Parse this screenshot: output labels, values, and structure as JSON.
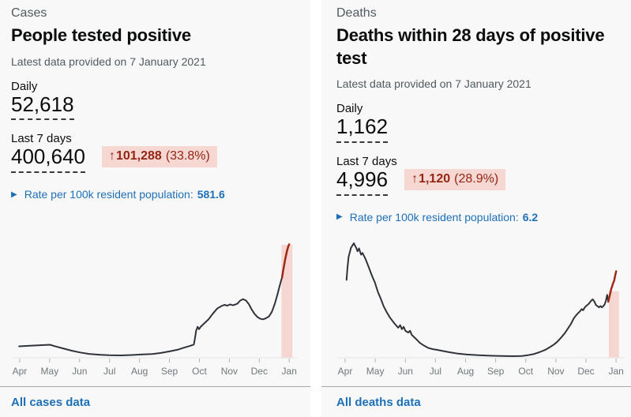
{
  "panels": [
    {
      "id": "cases",
      "section_label": "Cases",
      "title": "People tested positive",
      "date_caption": "Latest data provided on 7 January 2021",
      "daily_label": "Daily",
      "daily_value": "52,618",
      "week_label": "Last 7 days",
      "week_value": "400,640",
      "change_arrow": "↑",
      "change_value": "101,288",
      "change_percent": "(33.8%)",
      "rate_label": "Rate per 100k resident population:",
      "rate_value": "581.6",
      "footer_link": "All cases data"
    },
    {
      "id": "deaths",
      "section_label": "Deaths",
      "title": "Deaths within 28 days of positive test",
      "date_caption": "Latest data provided on 7 January 2021",
      "daily_label": "Daily",
      "daily_value": "1,162",
      "week_label": "Last 7 days",
      "week_value": "4,996",
      "change_arrow": "↑",
      "change_value": "1,120",
      "change_percent": "(28.9%)",
      "rate_label": "Rate per 100k resident population:",
      "rate_value": "6.2",
      "footer_link": "All deaths data"
    }
  ],
  "colors": {
    "page_bg": "#ffffff",
    "panel_bg": "#f8f8f8",
    "text": "#0b0c0c",
    "secondary_text": "#505a5f",
    "link_blue": "#1d70b8",
    "badge_bg": "#f6d7d2",
    "badge_text": "#942514",
    "chart_line": "#30343a",
    "chart_line_red": "#9e2a18",
    "highlight_band": "#f5d6d0",
    "axis_line": "#e4e5e6",
    "tick": "#b1b4b6",
    "axis_label": "#6f777b",
    "divider": "#a6a9ab"
  },
  "chart_data": [
    {
      "type": "line",
      "name": "cases-by-day",
      "title": "People tested positive by day, Apr 2020 - Jan 2021",
      "x_labels": [
        "Apr",
        "May",
        "Jun",
        "Jul",
        "Aug",
        "Sep",
        "Oct",
        "Nov",
        "Dec",
        "Jan"
      ],
      "y_axis": "hidden",
      "grid": false,
      "legend": "none",
      "peak_value_estimate": 62000,
      "latest_daily_value": 52618,
      "highlight_band": {
        "x0": 0.938,
        "x1": 0.976,
        "top": 0.985,
        "color": "#f5d6d0",
        "meaning": "last 7 days"
      },
      "series": [
        {
          "name": "daily-cases",
          "color": "#30343a",
          "width": 2,
          "points": [
            [
              0.028,
              0.1
            ],
            [
              0.06,
              0.104
            ],
            [
              0.1,
              0.11
            ],
            [
              0.135,
              0.114
            ],
            [
              0.15,
              0.102
            ],
            [
              0.18,
              0.082
            ],
            [
              0.21,
              0.062
            ],
            [
              0.24,
              0.046
            ],
            [
              0.27,
              0.034
            ],
            [
              0.31,
              0.026
            ],
            [
              0.34,
              0.022
            ],
            [
              0.38,
              0.021
            ],
            [
              0.42,
              0.024
            ],
            [
              0.45,
              0.028
            ],
            [
              0.49,
              0.033
            ],
            [
              0.52,
              0.042
            ],
            [
              0.55,
              0.056
            ],
            [
              0.58,
              0.072
            ],
            [
              0.6,
              0.088
            ],
            [
              0.62,
              0.103
            ],
            [
              0.634,
              0.115
            ],
            [
              0.638,
              0.17
            ],
            [
              0.642,
              0.235
            ],
            [
              0.647,
              0.27
            ],
            [
              0.652,
              0.25
            ],
            [
              0.658,
              0.272
            ],
            [
              0.67,
              0.3
            ],
            [
              0.685,
              0.335
            ],
            [
              0.7,
              0.385
            ],
            [
              0.715,
              0.43
            ],
            [
              0.73,
              0.452
            ],
            [
              0.74,
              0.462
            ],
            [
              0.75,
              0.455
            ],
            [
              0.76,
              0.466
            ],
            [
              0.77,
              0.458
            ],
            [
              0.785,
              0.472
            ],
            [
              0.795,
              0.5
            ],
            [
              0.805,
              0.512
            ],
            [
              0.815,
              0.5
            ],
            [
              0.825,
              0.468
            ],
            [
              0.835,
              0.42
            ],
            [
              0.845,
              0.382
            ],
            [
              0.855,
              0.355
            ],
            [
              0.865,
              0.34
            ],
            [
              0.875,
              0.336
            ],
            [
              0.885,
              0.346
            ],
            [
              0.895,
              0.362
            ],
            [
              0.905,
              0.402
            ],
            [
              0.915,
              0.472
            ],
            [
              0.925,
              0.56
            ],
            [
              0.932,
              0.63
            ],
            [
              0.937,
              0.675
            ],
            [
              0.94,
              0.7
            ]
          ]
        },
        {
          "name": "daily-cases-last-7-days",
          "color": "#9e2a18",
          "width": 2.5,
          "points": [
            [
              0.94,
              0.7
            ],
            [
              0.945,
              0.775
            ],
            [
              0.951,
              0.86
            ],
            [
              0.957,
              0.93
            ],
            [
              0.962,
              0.975
            ],
            [
              0.965,
              0.99
            ]
          ]
        }
      ]
    },
    {
      "type": "line",
      "name": "deaths-by-day",
      "title": "Deaths within 28 days of positive test by day, Apr 2020 - Jan 2021",
      "x_labels": [
        "Apr",
        "May",
        "Jun",
        "Jul",
        "Aug",
        "Sep",
        "Oct",
        "Nov",
        "Dec",
        "Jan"
      ],
      "y_axis": "hidden",
      "grid": false,
      "legend": "none",
      "peak_value_estimate": 1100,
      "latest_daily_value": 1162,
      "highlight_band": {
        "x0": 0.94,
        "x1": 0.975,
        "top": 0.58,
        "color": "#f5d6d0",
        "meaning": "last 7 days"
      },
      "series": [
        {
          "name": "daily-deaths",
          "color": "#30343a",
          "width": 2,
          "points": [
            [
              0.035,
              0.68
            ],
            [
              0.038,
              0.78
            ],
            [
              0.042,
              0.88
            ],
            [
              0.05,
              0.96
            ],
            [
              0.06,
              1.0
            ],
            [
              0.068,
              0.96
            ],
            [
              0.073,
              0.93
            ],
            [
              0.078,
              0.955
            ],
            [
              0.085,
              0.9
            ],
            [
              0.09,
              0.915
            ],
            [
              0.1,
              0.865
            ],
            [
              0.11,
              0.8
            ],
            [
              0.122,
              0.72
            ],
            [
              0.133,
              0.655
            ],
            [
              0.143,
              0.575
            ],
            [
              0.153,
              0.515
            ],
            [
              0.163,
              0.45
            ],
            [
              0.173,
              0.4
            ],
            [
              0.185,
              0.35
            ],
            [
              0.2,
              0.3
            ],
            [
              0.213,
              0.262
            ],
            [
              0.22,
              0.285
            ],
            [
              0.226,
              0.25
            ],
            [
              0.232,
              0.27
            ],
            [
              0.238,
              0.235
            ],
            [
              0.248,
              0.22
            ],
            [
              0.254,
              0.236
            ],
            [
              0.26,
              0.2
            ],
            [
              0.273,
              0.168
            ],
            [
              0.288,
              0.13
            ],
            [
              0.303,
              0.105
            ],
            [
              0.318,
              0.085
            ],
            [
              0.333,
              0.075
            ],
            [
              0.35,
              0.068
            ],
            [
              0.37,
              0.058
            ],
            [
              0.39,
              0.048
            ],
            [
              0.42,
              0.036
            ],
            [
              0.45,
              0.028
            ],
            [
              0.49,
              0.022
            ],
            [
              0.53,
              0.018
            ],
            [
              0.57,
              0.015
            ],
            [
              0.61,
              0.014
            ],
            [
              0.64,
              0.016
            ],
            [
              0.66,
              0.022
            ],
            [
              0.68,
              0.032
            ],
            [
              0.7,
              0.048
            ],
            [
              0.72,
              0.068
            ],
            [
              0.735,
              0.09
            ],
            [
              0.75,
              0.115
            ],
            [
              0.762,
              0.14
            ],
            [
              0.775,
              0.175
            ],
            [
              0.788,
              0.215
            ],
            [
              0.8,
              0.26
            ],
            [
              0.81,
              0.3
            ],
            [
              0.818,
              0.34
            ],
            [
              0.825,
              0.365
            ],
            [
              0.832,
              0.385
            ],
            [
              0.84,
              0.405
            ],
            [
              0.846,
              0.425
            ],
            [
              0.851,
              0.415
            ],
            [
              0.857,
              0.44
            ],
            [
              0.863,
              0.455
            ],
            [
              0.87,
              0.47
            ],
            [
              0.878,
              0.495
            ],
            [
              0.884,
              0.51
            ],
            [
              0.89,
              0.492
            ],
            [
              0.895,
              0.462
            ],
            [
              0.9,
              0.452
            ],
            [
              0.906,
              0.44
            ],
            [
              0.911,
              0.452
            ],
            [
              0.916,
              0.44
            ],
            [
              0.921,
              0.452
            ],
            [
              0.926,
              0.468
            ],
            [
              0.93,
              0.5
            ],
            [
              0.934,
              0.55
            ],
            [
              0.936,
              0.52
            ],
            [
              0.938,
              0.49
            ]
          ]
        },
        {
          "name": "daily-deaths-last-7-days",
          "color": "#9e2a18",
          "width": 2.5,
          "points": [
            [
              0.938,
              0.49
            ],
            [
              0.943,
              0.545
            ],
            [
              0.948,
              0.6
            ],
            [
              0.952,
              0.63
            ],
            [
              0.955,
              0.655
            ],
            [
              0.958,
              0.67
            ],
            [
              0.961,
              0.71
            ],
            [
              0.965,
              0.755
            ]
          ]
        }
      ]
    }
  ]
}
